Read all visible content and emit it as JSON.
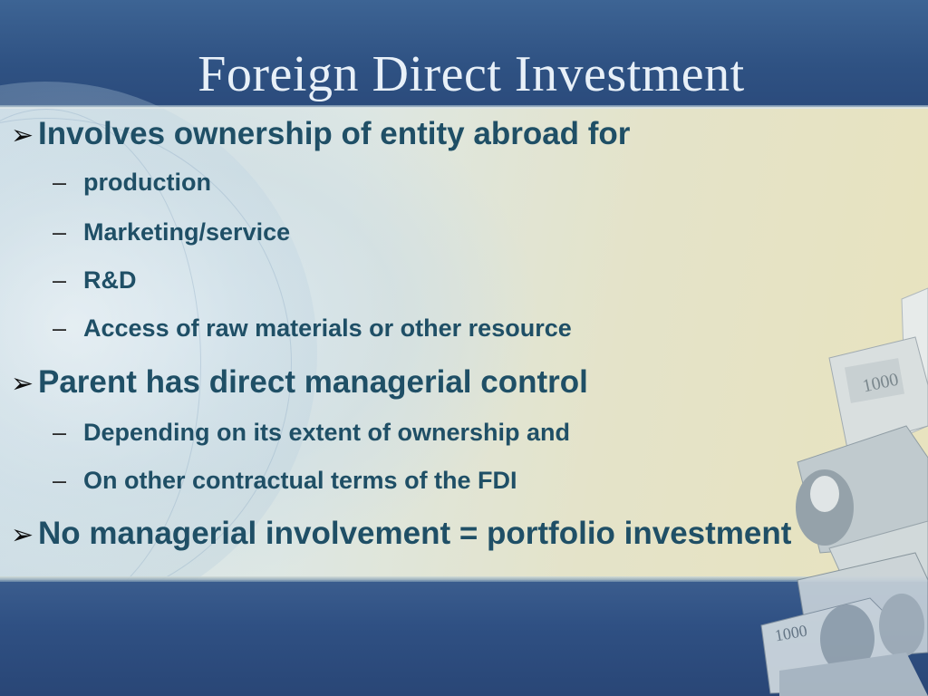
{
  "slide": {
    "title": "Foreign Direct Investment",
    "bullet_marker": "➢",
    "sub_marker": "–",
    "items": [
      {
        "text": "Involves ownership of entity abroad for"
      },
      {
        "text": "production"
      },
      {
        "text": "Marketing/service"
      },
      {
        "text": "R&D"
      },
      {
        "text": "Access of raw materials or other resource"
      },
      {
        "text": "Parent has direct managerial control"
      },
      {
        "text": "Depending on its extent of ownership and"
      },
      {
        "text": "On other contractual terms of the FDI"
      },
      {
        "text": "No managerial involvement = portfolio investment"
      }
    ],
    "decoration": {
      "banknote_numbers": [
        "1000",
        "1000"
      ]
    }
  },
  "colors": {
    "title": "#e8f0f8",
    "text": "#1f4f66",
    "background": "#2c4a78",
    "panel": "#dde7e4"
  }
}
